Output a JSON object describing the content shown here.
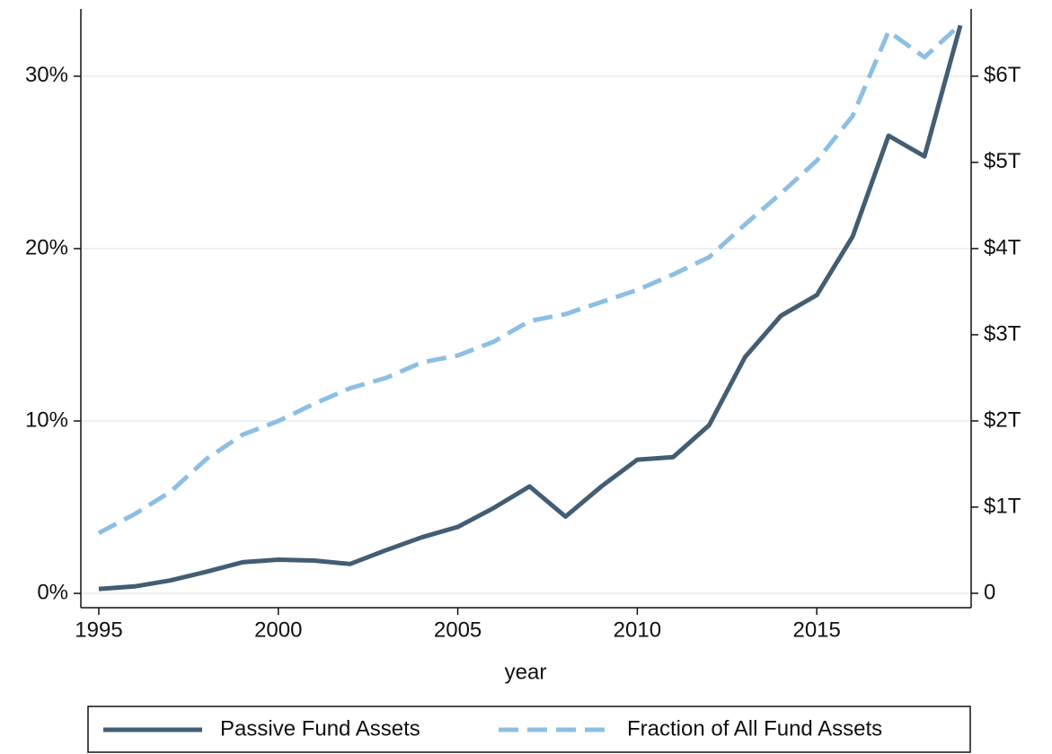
{
  "chart_data": {
    "type": "line",
    "xlabel": "year",
    "x": [
      1995,
      1996,
      1997,
      1998,
      1999,
      2000,
      2001,
      2002,
      2003,
      2004,
      2005,
      2006,
      2007,
      2008,
      2009,
      2010,
      2011,
      2012,
      2013,
      2014,
      2015,
      2016,
      2017,
      2018,
      2019
    ],
    "series": [
      {
        "name": "Passive Fund Assets",
        "color": "#435d73",
        "axis": "y2",
        "dash": false,
        "values": [
          0.05,
          0.08,
          0.15,
          0.25,
          0.36,
          0.39,
          0.38,
          0.34,
          0.5,
          0.65,
          0.77,
          0.99,
          1.24,
          0.89,
          1.24,
          1.55,
          1.58,
          1.95,
          2.74,
          3.22,
          3.46,
          4.14,
          5.31,
          5.07,
          6.59
        ]
      },
      {
        "name": "Fraction of All Fund Assets",
        "color": "#8dbfe3",
        "axis": "y",
        "dash": true,
        "values": [
          3.5,
          4.6,
          5.9,
          7.8,
          9.2,
          10.0,
          11.0,
          11.9,
          12.5,
          13.4,
          13.8,
          14.6,
          15.8,
          16.2,
          16.9,
          17.6,
          18.5,
          19.5,
          21.4,
          23.2,
          25.1,
          27.7,
          32.6,
          31.1,
          33.0
        ]
      }
    ],
    "xlim": [
      1994.5,
      2019.3
    ],
    "xticks": [
      1995,
      2000,
      2005,
      2010,
      2015
    ],
    "ylim": [
      -0.83,
      33.9
    ],
    "yticks": [
      {
        "value": 0,
        "label": "0%"
      },
      {
        "value": 10,
        "label": "10%"
      },
      {
        "value": 20,
        "label": "20%"
      },
      {
        "value": 30,
        "label": "30%"
      }
    ],
    "y2lim": [
      -0.167,
      6.78
    ],
    "y2ticks": [
      0,
      {
        "value": 1,
        "label": "$1T"
      },
      {
        "value": 2,
        "label": "$2T"
      },
      {
        "value": 3,
        "label": "$3T"
      },
      {
        "value": 4,
        "label": "$4T"
      },
      {
        "value": 5,
        "label": "$5T"
      },
      {
        "value": 6,
        "label": "$6T"
      }
    ],
    "grid": true,
    "legend": "bottom"
  }
}
